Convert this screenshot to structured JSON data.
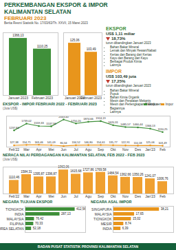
{
  "header": {
    "title": "PERKEMBANGAN EKSPOR & IMPOR KALIMANTAN SELATAN",
    "subtitle": "FEBRUARI 2023",
    "note": "Berita Resmi Statistik No. 17/03/63/Th. XXVII, 15 Maret 2023"
  },
  "summary": [
    {
      "title": "EKSPOR",
      "amount": "US$ 1,11 miliar",
      "change": "18,73%",
      "change_note": "turun dibandingkan Januari 2023",
      "color": "#3f8f3a",
      "items": [
        "Bahan Bakar Mineral",
        "Lemak dan Minyak Hewan/Nabati",
        "Kertas dan Barang dari Kertas",
        "Kayu dan Barang dari Kayu",
        "Berbagai Produk Kimia",
        "Lainnya"
      ]
    },
    {
      "title": "IMPOR",
      "amount": "US$ 103,49 juta",
      "change": "17,25%",
      "change_note": "turun dibandingkan Januari 2023",
      "color": "#e8951c",
      "items": [
        "Bahan Bakar Mineral",
        "Pupuk",
        "Bahan Kimia Organik",
        "Mesin dan Peralatan Mekanis",
        "Mesin dan Perlengkapan Elektrik serta Bagiannya",
        "Lainnya"
      ]
    }
  ],
  "chart_data": [
    {
      "type": "bar",
      "categories": [
        "Januari 2023",
        "Februari 2023"
      ],
      "values": [
        1366.13,
        1110.25
      ],
      "value_labels": [
        "1366,13",
        "1110,25"
      ],
      "color": "#3f8f3a",
      "ylim": [
        0,
        1500
      ],
      "data_labels": true,
      "tick_labels": "x"
    },
    {
      "type": "bar",
      "categories": [
        "Januari 2023",
        "Februari 2023"
      ],
      "values": [
        125.06,
        103.49
      ],
      "value_labels": [
        "125,06",
        "103,49"
      ],
      "color": "#e8951c",
      "ylim": [
        0,
        150
      ],
      "data_labels": true,
      "tick_labels": "x"
    },
    {
      "type": "line",
      "title": "EKSPOR - IMPOR FEBRUARI 2022 - FEBRUARI 2023",
      "y_label": "(Juta US$)",
      "categories": [
        "Feb'22",
        "Mar",
        "Apr",
        "Mei",
        "Jun",
        "Jul",
        "Agu",
        "Sep",
        "Okt",
        "Nov",
        "Des",
        "Jan'23",
        "Feb"
      ],
      "series": [
        {
          "name": "Ekspor",
          "color": "#3f8f3a",
          "values": [
            1237.84,
            1739.02,
            1559.33,
            1537.96,
            2043.4,
            1750.2,
            1874.66,
            1924.19,
            1620.31,
            1485.57,
            1460.44,
            1366.13,
            1110.25
          ],
          "value_labels": [
            "1237,84",
            "1739,02",
            "1559,33",
            "1537,96",
            "2043,40",
            "1750,20",
            "1874,66",
            "1924,19",
            "1620,31",
            "1485,57",
            "1460,44",
            "1366,13",
            "1110,25"
          ]
        },
        {
          "name": "Impor",
          "color": "#e8951c",
          "values": [
            127.38,
            154.71,
            163.46,
            141.09,
            80.34,
            134.52,
            146.8,
            154.61,
            135.77,
            122.91,
            110.18,
            125.06,
            103.49
          ],
          "value_labels": [
            "127,38",
            "154,71",
            "163,46",
            "141,09",
            "80,34",
            "134,52",
            "146,80",
            "154,61",
            "135,77",
            "122,91",
            "110,18",
            "125,06",
            "103,49"
          ]
        }
      ],
      "ylim": [
        0,
        2300
      ],
      "data_labels": true,
      "tick_labels": "x",
      "legend": "top-right",
      "marker": "circle"
    },
    {
      "type": "bar",
      "title": "NERACA NILAI PERDAGANGAN KALIMANTAN SELATAN, FEB 2022 - FEB 2023",
      "y_label": "(Juta US$)",
      "categories": [
        "Feb'22",
        "Mar",
        "Apr",
        "Mei",
        "Jun",
        "Jul",
        "Agu",
        "Sep",
        "Okt",
        "Nov",
        "Des",
        "Jan'23",
        "Feb"
      ],
      "values": [
        1110.46,
        1584.31,
        1395.87,
        1396.87,
        1963.06,
        1615.68,
        1727.86,
        1769.58,
        1484.54,
        1362.66,
        1350.26,
        1241.07,
        1006.76
      ],
      "value_labels": [
        "1110,46",
        "1584,31",
        "1395,87",
        "1396,87",
        "1963,06",
        "1615,68",
        "1727,86",
        "1769,58",
        "1484,54",
        "1362,66",
        "1350,26",
        "1241,07",
        "1006,76"
      ],
      "color": "#f0a030",
      "ylim": [
        0,
        2200
      ],
      "data_labels": true,
      "tick_labels": "x"
    },
    {
      "type": "bar",
      "orientation": "horizontal",
      "title": "NEGARA TUJUAN EKSPOR",
      "categories": [
        "TIONGKOK",
        "INDIA",
        "MALAYSIA",
        "FILIPINA",
        "KOREA SELATAN"
      ],
      "values": [
        412.56,
        287.13,
        76.42,
        70.33,
        52.18
      ],
      "value_labels": [
        "412,56",
        "287,13",
        "76,42",
        "70,33",
        "52,18"
      ],
      "color": "#3f8f3a",
      "xlim": [
        0,
        500
      ],
      "data_labels": true,
      "tick_labels": "y"
    },
    {
      "type": "bar",
      "orientation": "horizontal",
      "title": "NEGARA ASAL IMPOR",
      "categories": [
        "SINGAPURA",
        "MALAYSIA",
        "TIONGKOK",
        "MESIR",
        "INDIA"
      ],
      "values": [
        38.21,
        17.65,
        15.02,
        8.74,
        6.39
      ],
      "value_labels": [
        "38,21",
        "17,65",
        "15,02",
        "8,74",
        "6,39"
      ],
      "color": "#e8951c",
      "xlim": [
        0,
        50
      ],
      "data_labels": true,
      "tick_labels": "y"
    }
  ],
  "footer": "BADAN PUSAT STATISTIK PROVINSI KALIMANTAN SELATAN"
}
